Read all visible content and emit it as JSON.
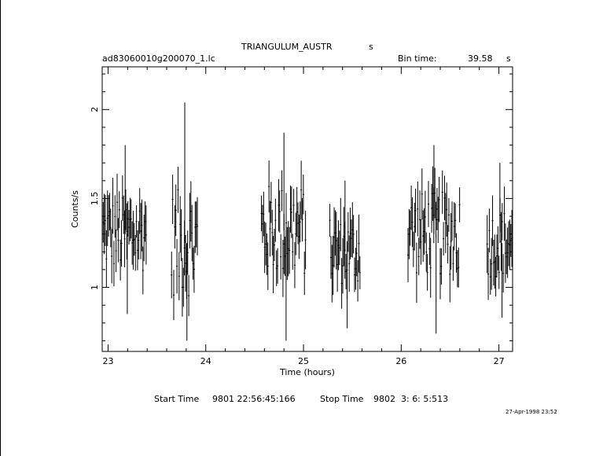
{
  "header": {
    "object": "TRIANGULUM_AUSTR",
    "object_suffix": "s",
    "filename": "ad83060010g200070_1.lc",
    "bin_label": "Bin time:",
    "bin_value": "39.58",
    "bin_unit": "s"
  },
  "footer": {
    "start_label": "Start Time",
    "start_value": "9801 22:56:45:166",
    "stop_label": "Stop Time",
    "stop_value": "9802  3: 6: 5:513",
    "timestamp": "27-Apr-1998 23:52"
  },
  "chart_data": {
    "type": "scatter",
    "title": "TRIANGULUM_AUSTR",
    "xlabel": "Time (hours)",
    "ylabel": "Counts/s",
    "xlim": [
      22.94,
      27.14
    ],
    "ylim": [
      0.64,
      2.24
    ],
    "xticks": [
      23,
      24,
      25,
      26,
      27
    ],
    "yticks": [
      1,
      1.5,
      2
    ],
    "xtick_labels": [
      "23",
      "24",
      "25",
      "26",
      "27"
    ],
    "ytick_labels": [
      "1",
      "1.5",
      "2"
    ],
    "grid": false,
    "error_bars": true,
    "series": [
      {
        "segments": [
          {
            "x_start": 22.95,
            "x_end": 23.4,
            "ymin": 0.85,
            "ymax": 1.8,
            "mean": 1.3
          },
          {
            "x_start": 23.65,
            "x_end": 23.92,
            "ymin": 0.7,
            "ymax": 2.04,
            "mean": 1.25
          },
          {
            "x_start": 24.57,
            "x_end": 25.03,
            "ymin": 0.7,
            "ymax": 1.87,
            "mean": 1.32
          },
          {
            "x_start": 25.27,
            "x_end": 25.58,
            "ymin": 0.77,
            "ymax": 1.6,
            "mean": 1.2
          },
          {
            "x_start": 26.07,
            "x_end": 26.6,
            "ymin": 0.74,
            "ymax": 1.8,
            "mean": 1.3
          },
          {
            "x_start": 26.88,
            "x_end": 27.14,
            "ymin": 0.83,
            "ymax": 1.7,
            "mean": 1.25
          }
        ]
      }
    ]
  }
}
